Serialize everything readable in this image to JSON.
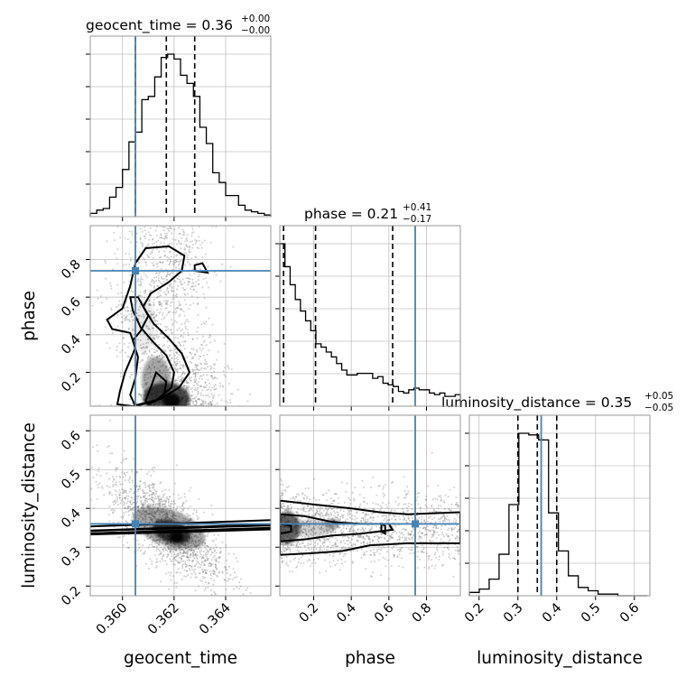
{
  "chart_data": {
    "type": "corner",
    "parameters": [
      "geocent_time",
      "phase",
      "luminosity_distance"
    ],
    "truths": {
      "geocent_time": 0.3605,
      "phase": 0.74,
      "luminosity_distance": 0.36
    },
    "grid": true,
    "diagonal_titles": [
      {
        "param": "geocent_time",
        "label": "geocent_time = 0.36",
        "upper": "+0.00",
        "lower": "−0.00"
      },
      {
        "param": "phase",
        "label": "phase = 0.21",
        "upper": "+0.41",
        "lower": "−0.17"
      },
      {
        "param": "luminosity_distance",
        "label": "luminosity_distance = 0.35",
        "upper": "+0.05",
        "lower": "−0.05"
      }
    ],
    "axis_labels": {
      "geocent_time": "geocent_time",
      "phase": "phase",
      "luminosity_distance": "luminosity_distance"
    },
    "ranges": {
      "geocent_time": [
        0.35875,
        0.36575
      ],
      "phase": [
        0.02,
        0.98
      ],
      "luminosity_distance": [
        0.175,
        0.64
      ]
    },
    "ticks": {
      "geocent_time": [
        "0.360",
        "0.362",
        "0.364"
      ],
      "phase": [
        "0.2",
        "0.4",
        "0.6",
        "0.8"
      ],
      "luminosity_distance": [
        "0.2",
        "0.3",
        "0.4",
        "0.5",
        "0.6"
      ]
    },
    "histograms": [
      {
        "param": "geocent_time",
        "bin_edges": [
          0.35875,
          0.359,
          0.35925,
          0.3595,
          0.35975,
          0.36,
          0.36025,
          0.3605,
          0.36075,
          0.361,
          0.36125,
          0.3615,
          0.36175,
          0.362,
          0.36225,
          0.3625,
          0.36275,
          0.363,
          0.36325,
          0.3635,
          0.36375,
          0.364,
          0.36425,
          0.3645,
          0.36475,
          0.365,
          0.36525,
          0.3655,
          0.36575
        ],
        "heights": [
          0.02,
          0.04,
          0.05,
          0.12,
          0.18,
          0.29,
          0.46,
          0.52,
          0.72,
          0.74,
          0.86,
          0.98,
          1.0,
          0.97,
          0.87,
          0.82,
          0.74,
          0.55,
          0.45,
          0.27,
          0.21,
          0.13,
          0.13,
          0.07,
          0.04,
          0.03,
          0.02,
          0.01
        ],
        "quantiles": [
          0.3605,
          0.3617,
          0.3628
        ]
      },
      {
        "param": "phase",
        "bin_edges": [
          0.02,
          0.0474,
          0.0749,
          0.1023,
          0.1297,
          0.1571,
          0.1846,
          0.212,
          0.2394,
          0.2669,
          0.2943,
          0.3217,
          0.3491,
          0.3766,
          0.404,
          0.4314,
          0.4589,
          0.4863,
          0.5137,
          0.5411,
          0.5686,
          0.596,
          0.6234,
          0.6509,
          0.6783,
          0.7057,
          0.7331,
          0.7606,
          0.788,
          0.8154,
          0.8429,
          0.8703,
          0.8977,
          0.9251,
          0.9526,
          0.98
        ],
        "heights": [
          0.99,
          0.85,
          0.74,
          0.65,
          0.58,
          0.52,
          0.46,
          0.38,
          0.36,
          0.33,
          0.3,
          0.26,
          0.22,
          0.19,
          0.19,
          0.2,
          0.2,
          0.2,
          0.17,
          0.18,
          0.14,
          0.13,
          0.12,
          0.09,
          0.08,
          0.1,
          0.11,
          0.1,
          0.1,
          0.08,
          0.07,
          0.08,
          0.06,
          0.06,
          0.07
        ],
        "quantiles": [
          0.04,
          0.21,
          0.62
        ]
      },
      {
        "param": "luminosity_distance",
        "bin_edges": [
          0.175,
          0.2005,
          0.226,
          0.2515,
          0.277,
          0.3025,
          0.328,
          0.3535,
          0.379,
          0.4045,
          0.43,
          0.4555,
          0.481,
          0.5065,
          0.532,
          0.5575,
          0.583,
          0.6085,
          0.634
        ],
        "heights": [
          0.02,
          0.04,
          0.1,
          0.25,
          0.55,
          0.98,
          0.97,
          0.94,
          0.5,
          0.27,
          0.12,
          0.05,
          0.03,
          0.01,
          0.01,
          0.0,
          0.0,
          0.0
        ],
        "quantiles": [
          0.3,
          0.35,
          0.4
        ]
      }
    ]
  }
}
